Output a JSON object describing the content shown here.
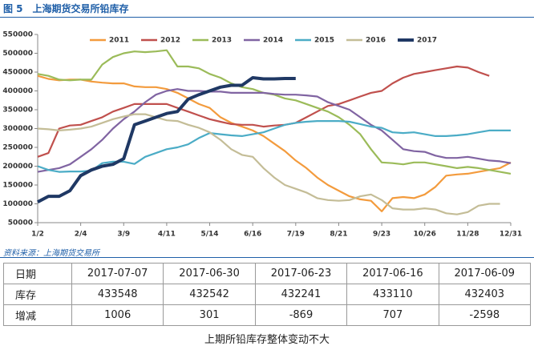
{
  "title": "图 5　上海期货交易所铅库存",
  "chart_data": {
    "type": "line",
    "categories": [
      "1/2",
      null,
      null,
      null,
      "2/4",
      null,
      null,
      null,
      "3/9",
      null,
      null,
      null,
      "4/11",
      null,
      null,
      null,
      "5/14",
      null,
      null,
      null,
      "6/16",
      null,
      null,
      null,
      "7/19",
      null,
      null,
      null,
      "8/21",
      null,
      null,
      null,
      "9/23",
      null,
      null,
      null,
      "10/26",
      null,
      null,
      null,
      "11/28",
      null,
      null,
      null,
      "12/31"
    ],
    "ylim": [
      50000,
      550000
    ],
    "yticks": [
      50000,
      100000,
      150000,
      200000,
      250000,
      300000,
      350000,
      400000,
      450000,
      500000,
      550000
    ],
    "grid": false,
    "legend": "top",
    "series": [
      {
        "name": "2011",
        "color": "#f39b3d",
        "values": [
          440000,
          432000,
          428000,
          430000,
          430000,
          425000,
          422000,
          420000,
          420000,
          412000,
          410000,
          410000,
          405000,
          395000,
          380000,
          365000,
          355000,
          330000,
          315000,
          305000,
          295000,
          280000,
          260000,
          240000,
          215000,
          195000,
          170000,
          150000,
          135000,
          120000,
          112000,
          108000,
          80000,
          115000,
          118000,
          115000,
          125000,
          145000,
          175000,
          178000,
          180000,
          185000,
          190000,
          195000,
          210000
        ]
      },
      {
        "name": "2012",
        "color": "#c0504d",
        "values": [
          225000,
          235000,
          300000,
          308000,
          310000,
          320000,
          330000,
          345000,
          355000,
          365000,
          365000,
          365000,
          365000,
          355000,
          345000,
          335000,
          325000,
          318000,
          312000,
          310000,
          310000,
          305000,
          308000,
          310000,
          315000,
          330000,
          345000,
          360000,
          365000,
          375000,
          385000,
          395000,
          400000,
          420000,
          435000,
          445000,
          450000,
          455000,
          460000,
          465000,
          462000,
          450000,
          440000,
          null,
          null
        ]
      },
      {
        "name": "2013",
        "color": "#9bbb59",
        "values": [
          445000,
          440000,
          430000,
          428000,
          430000,
          430000,
          470000,
          490000,
          500000,
          505000,
          503000,
          505000,
          508000,
          465000,
          465000,
          460000,
          445000,
          435000,
          420000,
          410000,
          405000,
          395000,
          390000,
          380000,
          375000,
          365000,
          355000,
          345000,
          330000,
          310000,
          285000,
          245000,
          210000,
          208000,
          205000,
          210000,
          210000,
          205000,
          200000,
          195000,
          198000,
          195000,
          190000,
          185000,
          180000
        ]
      },
      {
        "name": "2014",
        "color": "#8064a2",
        "values": [
          185000,
          190000,
          195000,
          205000,
          225000,
          245000,
          270000,
          300000,
          325000,
          345000,
          370000,
          390000,
          400000,
          405000,
          400000,
          400000,
          398000,
          398000,
          395000,
          395000,
          395000,
          395000,
          392000,
          390000,
          390000,
          388000,
          385000,
          370000,
          360000,
          350000,
          330000,
          310000,
          295000,
          270000,
          245000,
          240000,
          238000,
          228000,
          222000,
          222000,
          225000,
          220000,
          215000,
          213000,
          208000
        ]
      },
      {
        "name": "2015",
        "color": "#4bacc6",
        "values": [
          200000,
          190000,
          185000,
          186000,
          186000,
          188000,
          208000,
          212000,
          212000,
          206000,
          225000,
          235000,
          245000,
          250000,
          258000,
          275000,
          288000,
          285000,
          282000,
          280000,
          285000,
          290000,
          300000,
          310000,
          315000,
          318000,
          320000,
          320000,
          320000,
          318000,
          312000,
          305000,
          302000,
          290000,
          288000,
          290000,
          285000,
          280000,
          280000,
          282000,
          285000,
          290000,
          295000,
          295000,
          295000
        ]
      },
      {
        "name": "2016",
        "color": "#c4bd97",
        "values": [
          300000,
          298000,
          295000,
          297000,
          300000,
          305000,
          315000,
          325000,
          332000,
          338000,
          338000,
          330000,
          322000,
          320000,
          310000,
          302000,
          290000,
          270000,
          245000,
          230000,
          225000,
          195000,
          170000,
          150000,
          140000,
          130000,
          115000,
          110000,
          108000,
          110000,
          120000,
          125000,
          110000,
          88000,
          85000,
          85000,
          88000,
          85000,
          75000,
          72000,
          78000,
          95000,
          100000,
          100000,
          null
        ]
      },
      {
        "name": "2017",
        "color": "#1f3864",
        "values": [
          105000,
          120000,
          120000,
          135000,
          175000,
          190000,
          200000,
          205000,
          220000,
          310000,
          320000,
          330000,
          340000,
          345000,
          378000,
          390000,
          400000,
          410000,
          415000,
          415000,
          435000,
          432000,
          432000,
          433000,
          433000,
          null,
          null,
          null,
          null,
          null,
          null,
          null,
          null,
          null,
          null,
          null,
          null,
          null,
          null,
          null,
          null,
          null,
          null,
          null,
          null
        ]
      }
    ]
  },
  "source": "资料来源：上海期货交易所",
  "table": {
    "rows": [
      [
        "日期",
        "2017-07-07",
        "2017-06-30",
        "2017-06-23",
        "2017-06-16",
        "2017-06-09"
      ],
      [
        "库存",
        433548,
        432542,
        432241,
        433110,
        432403
      ],
      [
        "增减",
        1006,
        301,
        -869,
        707,
        -2598
      ]
    ]
  },
  "caption": "上期所铅库存整体变动不大"
}
